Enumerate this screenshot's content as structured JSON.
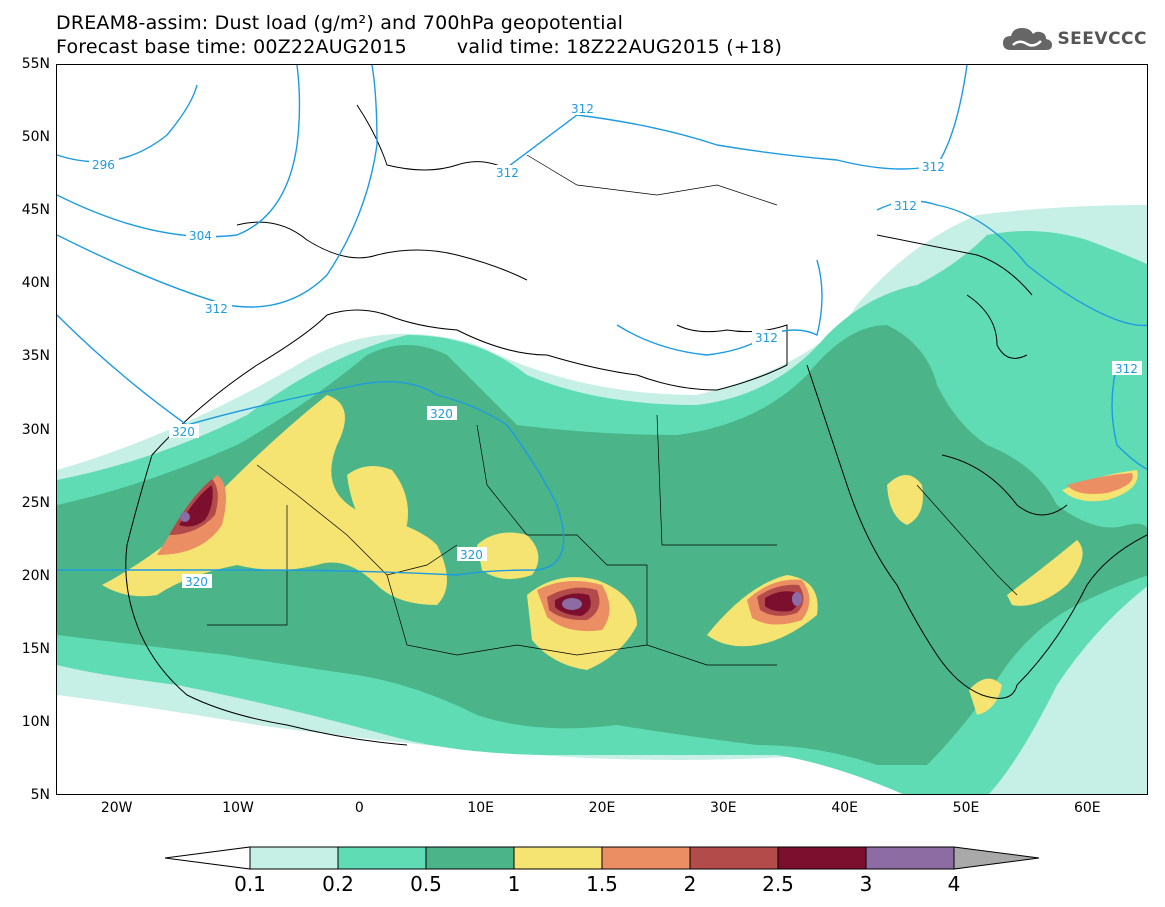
{
  "header": {
    "title_line1": "DREAM8-assim: Dust load (g/m²) and 700hPa geopotential",
    "base_time": "Forecast base time: 00Z22AUG2015",
    "valid_time": "valid time: 18Z22AUG2015 (+18)",
    "logo_text": "SEEVCCC",
    "logo_icon": "cloud-logo-icon"
  },
  "axes": {
    "lat_labels": [
      "55N",
      "50N",
      "45N",
      "40N",
      "35N",
      "30N",
      "25N",
      "20N",
      "15N",
      "10N",
      "5N"
    ],
    "lon_labels": [
      "20W",
      "10W",
      "0",
      "10E",
      "20E",
      "30E",
      "40E",
      "50E",
      "60E"
    ],
    "lat_range": [
      5,
      55
    ],
    "lon_range": [
      -25,
      65
    ]
  },
  "map_data": {
    "contour_labels": [
      "296",
      "304",
      "312",
      "312",
      "312",
      "312",
      "312",
      "312",
      "312",
      "320",
      "320",
      "320",
      "320"
    ],
    "colors": {
      "level1": "#c6efe6",
      "level2": "#5fdcb3",
      "level3": "#4bb589",
      "level4": "#f5e372",
      "level5": "#ec8e63",
      "level6": "#b34b4b",
      "level7": "#7d0f2e",
      "level8": "#8d6ba3",
      "level9": "#a9a9a9",
      "contour": "#1e9be0",
      "coast": "#000000"
    }
  },
  "colorbar": {
    "labels": [
      "0.1",
      "0.2",
      "0.5",
      "1",
      "1.5",
      "2",
      "2.5",
      "3",
      "4"
    ],
    "colors": [
      "#c6efe6",
      "#5fdcb3",
      "#4bb589",
      "#f5e372",
      "#ec8e63",
      "#b34b4b",
      "#7d0f2e",
      "#8d6ba3"
    ]
  }
}
